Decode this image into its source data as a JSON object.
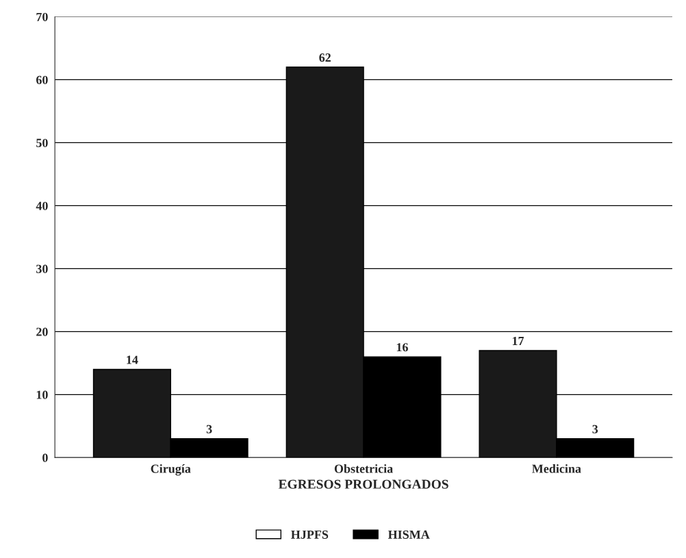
{
  "chart_data": {
    "type": "bar",
    "xlabel": "EGRESOS PROLONGADOS",
    "categories": [
      "Cirugía",
      "Obstetricia",
      "Medicina"
    ],
    "series": [
      {
        "name": "HJPFS",
        "color": "#1a1a1a",
        "values": [
          14,
          62,
          17
        ]
      },
      {
        "name": "HISMA",
        "color": "#000000",
        "values": [
          3,
          16,
          3
        ]
      }
    ],
    "ylim": [
      0,
      70
    ],
    "yticks": [
      0,
      10,
      20,
      30,
      40,
      50,
      60,
      70
    ],
    "grid": "y",
    "legend": "bottom",
    "data_labels": true
  }
}
